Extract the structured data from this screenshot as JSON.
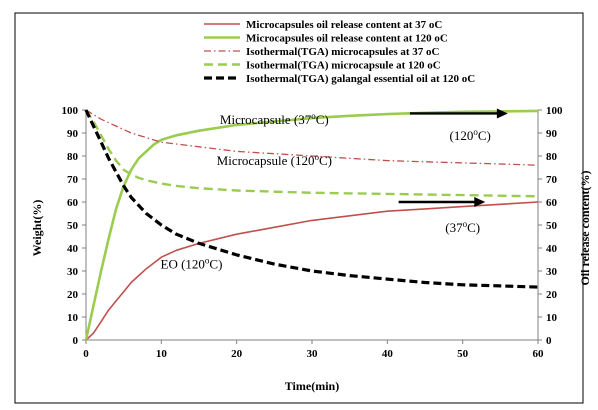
{
  "chart_data": {
    "type": "line",
    "xlabel": "Time(min)",
    "ylabel": "Weight(%)",
    "y2label": "Oil release content(%)",
    "xlim": [
      0,
      60
    ],
    "ylim": [
      0,
      100
    ],
    "y2lim": [
      0,
      100
    ],
    "x_ticks": [
      "0",
      "10",
      "20",
      "30",
      "40",
      "50",
      "60"
    ],
    "y_ticks": [
      "0",
      "10",
      "20",
      "30",
      "40",
      "50",
      "60",
      "70",
      "80",
      "90",
      "100"
    ],
    "y2_ticks": [
      "0",
      "10",
      "20",
      "30",
      "40",
      "50",
      "60",
      "70",
      "80",
      "90",
      "100"
    ],
    "grid": false,
    "legend_position": "top",
    "series": [
      {
        "name": "Microcapsules oil release content at 37 oC",
        "color": "#c0504d",
        "style": "solid",
        "axis": "right",
        "x": [
          0,
          1,
          2,
          3,
          4,
          5,
          6,
          8,
          10,
          12,
          15,
          20,
          25,
          30,
          35,
          40,
          45,
          50,
          55,
          60
        ],
        "y": [
          0,
          3,
          8,
          13,
          17,
          21,
          25,
          31,
          36,
          39,
          42,
          46,
          49,
          52,
          54,
          56,
          57,
          58,
          59,
          60
        ]
      },
      {
        "name": "Microcapsules oil release content at 120 oC",
        "color": "#9bcc50",
        "style": "solid-thick",
        "axis": "right",
        "x": [
          0,
          1,
          2,
          3,
          4,
          5,
          6,
          7,
          8,
          9,
          10,
          12,
          15,
          20,
          25,
          30,
          35,
          40,
          45,
          50,
          55,
          60
        ],
        "y": [
          0,
          15,
          30,
          44,
          57,
          67,
          74,
          79,
          82,
          85,
          87,
          89,
          91,
          93.5,
          95,
          96.5,
          97.5,
          98.2,
          98.8,
          99.2,
          99.4,
          99.6
        ]
      },
      {
        "name": "Isothermal(TGA) microcapsules at 37 oC",
        "color": "#c0504d",
        "style": "dash-dot",
        "axis": "left",
        "x": [
          0,
          2,
          4,
          6,
          8,
          10,
          15,
          20,
          25,
          30,
          35,
          40,
          45,
          50,
          55,
          60
        ],
        "y": [
          100,
          96,
          93,
          90,
          88,
          86,
          84,
          82,
          81,
          80,
          79,
          78,
          77.5,
          77,
          76.5,
          76
        ]
      },
      {
        "name": "Isothermal(TGA) microcapsule at 120 oC",
        "color": "#9bcc50",
        "style": "dashed",
        "axis": "left",
        "x": [
          0,
          1,
          2,
          3,
          4,
          5,
          6,
          7,
          8,
          10,
          12,
          15,
          20,
          30,
          40,
          50,
          60
        ],
        "y": [
          100,
          95,
          89,
          83,
          78,
          74,
          72,
          70.5,
          69.5,
          68,
          67,
          66,
          65,
          64,
          63.5,
          63,
          62.5
        ]
      },
      {
        "name": "Isothermal(TGA) galangal essential oil at 120 oC",
        "color": "#000000",
        "style": "dashed-thick",
        "axis": "left",
        "x": [
          0,
          1,
          2,
          3,
          4,
          5,
          6,
          8,
          10,
          12,
          15,
          20,
          25,
          30,
          35,
          40,
          45,
          50,
          55,
          60
        ],
        "y": [
          100,
          93,
          86,
          79,
          73,
          67,
          62,
          55,
          50,
          46,
          42,
          37,
          33,
          30,
          28,
          26.5,
          25,
          24,
          23.5,
          23
        ]
      }
    ],
    "annotations": [
      {
        "label": "Microcapsule (37",
        "sup": "o",
        "tail": "C)",
        "x": 25,
        "y": 94
      },
      {
        "label": "(120",
        "sup": "o",
        "tail": "C)",
        "x": 51,
        "y": 87
      },
      {
        "label": "Microcapsule (120",
        "sup": "o",
        "tail": "C)",
        "x": 25,
        "y": 76
      },
      {
        "label": "(37",
        "sup": "o",
        "tail": "C)",
        "x": 50,
        "y": 47
      },
      {
        "label": "EO (120",
        "sup": "o",
        "tail": "C)",
        "x": 14,
        "y": 31
      }
    ],
    "arrows": [
      {
        "x1": 43,
        "y1": 98.5,
        "x2": 56,
        "y2": 98.5
      },
      {
        "x1": 41.5,
        "y1": 60,
        "x2": 53,
        "y2": 60
      }
    ]
  }
}
